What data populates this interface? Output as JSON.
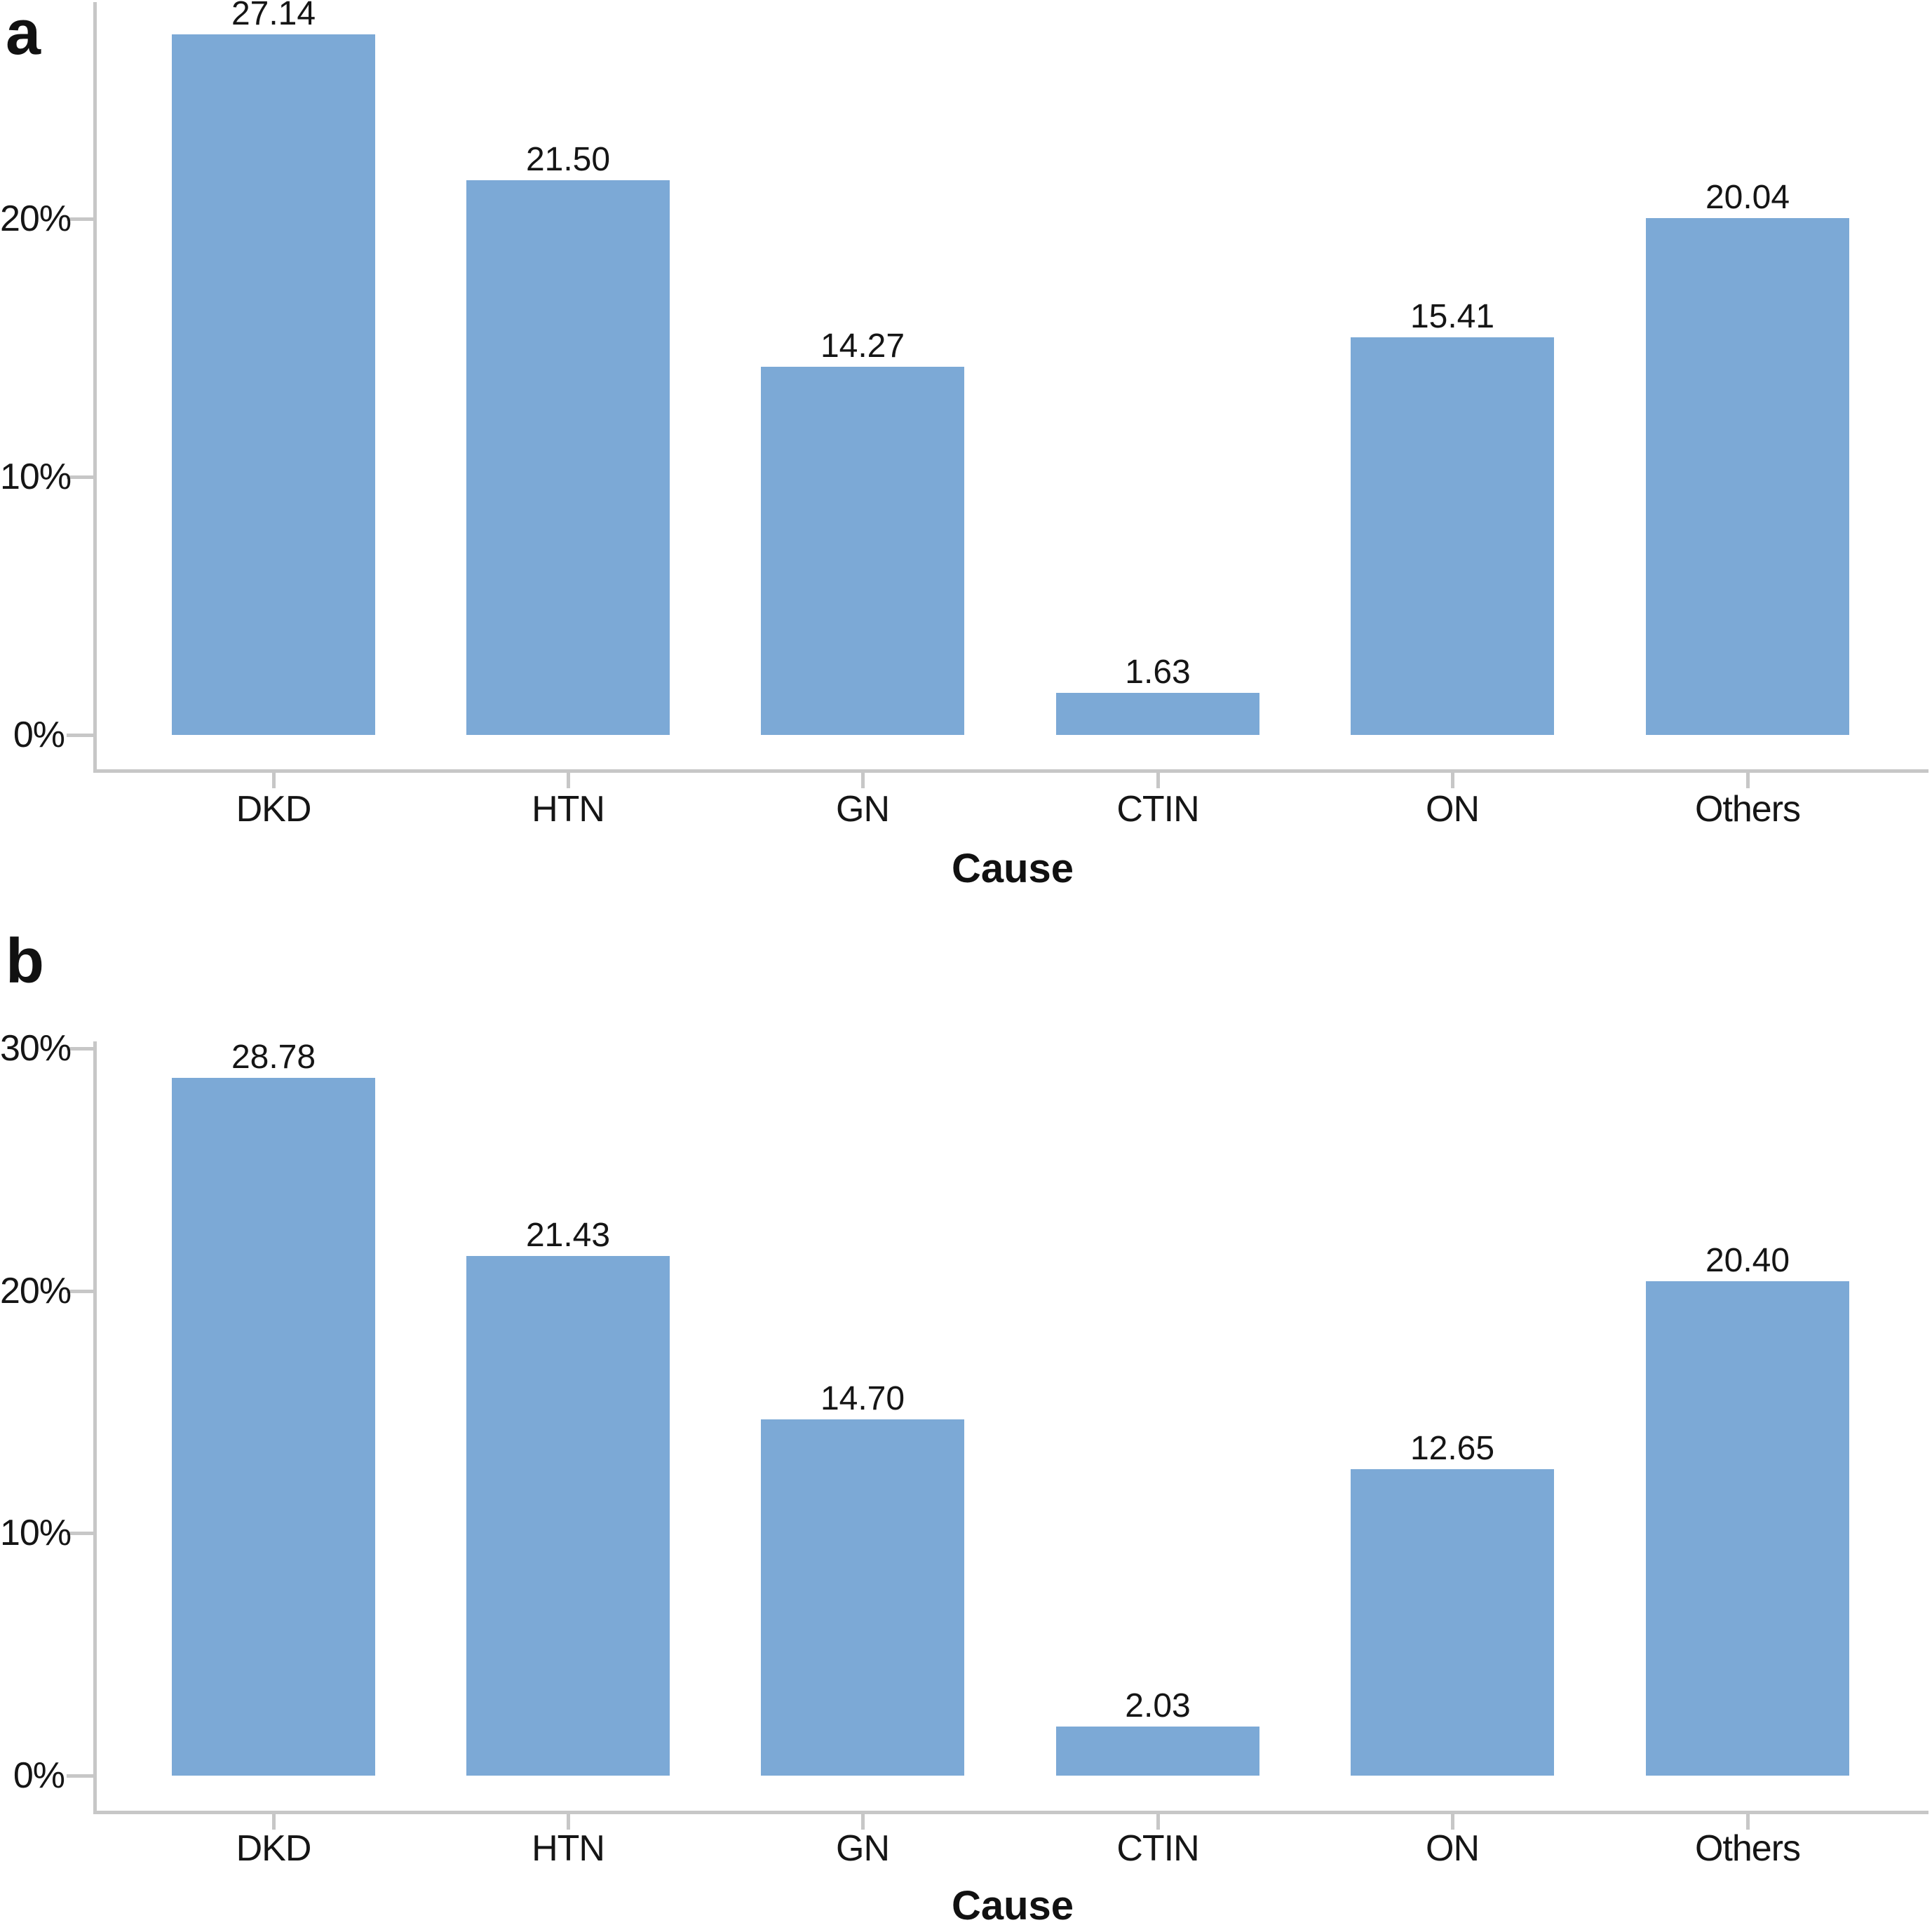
{
  "figure": {
    "background_color": "#ffffff",
    "text_color": "#151515",
    "axis_color": "#c7c7c7",
    "bar_color": "#7CA9D6",
    "panel_labels": [
      "a",
      "b"
    ]
  },
  "chart_data": [
    {
      "type": "bar",
      "panel_label": "a",
      "title": "",
      "xlabel": "Cause",
      "ylabel": "",
      "categories": [
        "DKD",
        "HTN",
        "GN",
        "CTIN",
        "ON",
        "Others"
      ],
      "values": [
        27.14,
        21.5,
        14.27,
        1.63,
        15.41,
        20.04
      ],
      "value_labels": [
        "27.14",
        "21.50",
        "14.27",
        "1.63",
        "15.41",
        "20.04"
      ],
      "ytick_values": [
        0,
        10,
        20
      ],
      "ytick_labels": [
        "0%",
        "10%",
        "20%"
      ],
      "ylim": [
        0,
        28.4
      ],
      "grid": false,
      "legend": "none",
      "bar_color": "#7CA9D6"
    },
    {
      "type": "bar",
      "panel_label": "b",
      "title": "",
      "xlabel": "Cause",
      "ylabel": "",
      "categories": [
        "DKD",
        "HTN",
        "GN",
        "CTIN",
        "ON",
        "Others"
      ],
      "values": [
        28.78,
        21.43,
        14.7,
        2.03,
        12.65,
        20.4
      ],
      "value_labels": [
        "28.78",
        "21.43",
        "14.70",
        "2.03",
        "12.65",
        "20.40"
      ],
      "ytick_values": [
        0,
        10,
        20,
        30
      ],
      "ytick_labels": [
        "0%",
        "10%",
        "20%",
        "30%"
      ],
      "ylim": [
        0,
        30.3
      ],
      "grid": false,
      "legend": "none",
      "bar_color": "#7CA9D6"
    }
  ]
}
